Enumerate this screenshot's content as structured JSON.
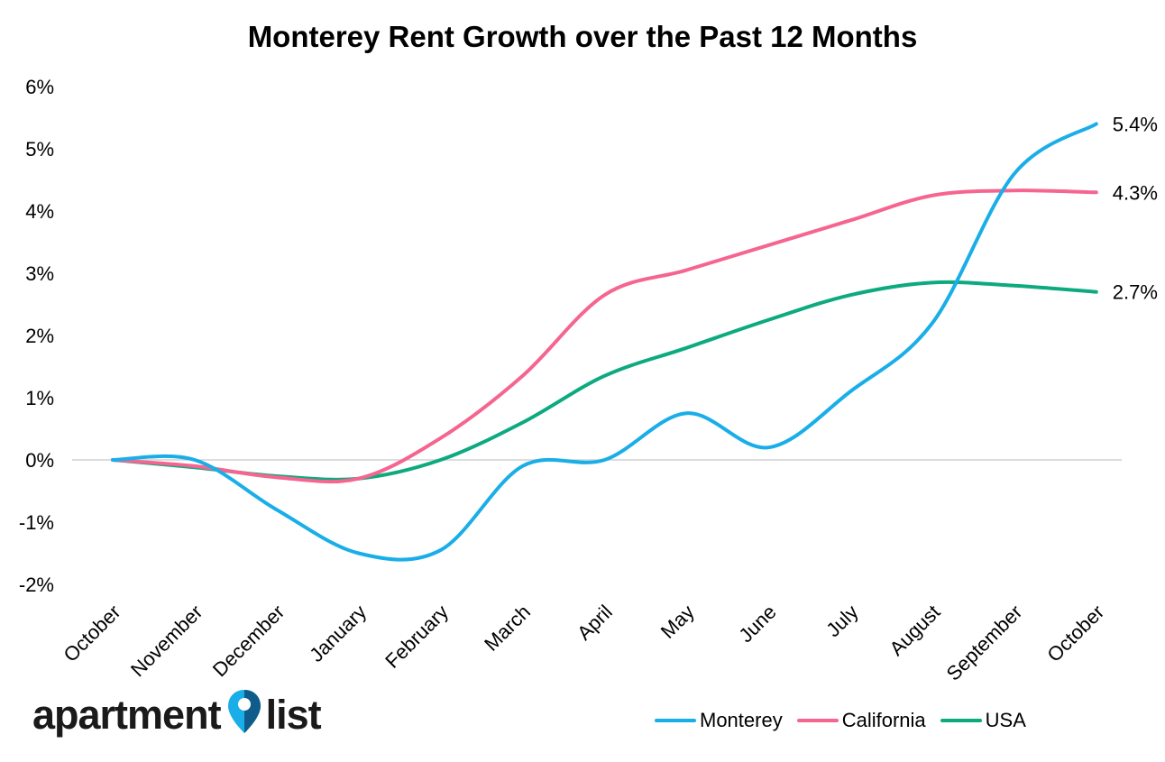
{
  "chart_data": {
    "type": "line",
    "title": "Monterey Rent Growth over the Past 12 Months",
    "categories": [
      "October",
      "November",
      "December",
      "January",
      "February",
      "March",
      "April",
      "May",
      "June",
      "July",
      "August",
      "September",
      "October"
    ],
    "yticks": [
      "6%",
      "5%",
      "4%",
      "3%",
      "2%",
      "1%",
      "0%",
      "-1%",
      "-2%"
    ],
    "ylim": [
      -2,
      6
    ],
    "grid": "zero line only",
    "legend_position": "bottom-right",
    "series": [
      {
        "name": "Monterey",
        "color": "#1aaee8",
        "values": [
          0,
          0,
          -0.8,
          -1.5,
          -1.45,
          -0.1,
          0,
          0.75,
          0.2,
          1.1,
          2.2,
          4.6,
          5.4
        ],
        "end_label": "5.4%"
      },
      {
        "name": "California",
        "color": "#f56590",
        "values": [
          0,
          -0.1,
          -0.28,
          -0.3,
          0.35,
          1.35,
          2.65,
          3.05,
          3.45,
          3.85,
          4.25,
          4.33,
          4.3
        ],
        "end_label": "4.3%"
      },
      {
        "name": "USA",
        "color": "#0daa7f",
        "values": [
          0,
          -0.12,
          -0.26,
          -0.3,
          0.0,
          0.6,
          1.35,
          1.8,
          2.25,
          2.65,
          2.85,
          2.8,
          2.7
        ],
        "end_label": "2.7%"
      }
    ]
  },
  "logo": {
    "word1": "apartment",
    "word2": "list"
  }
}
